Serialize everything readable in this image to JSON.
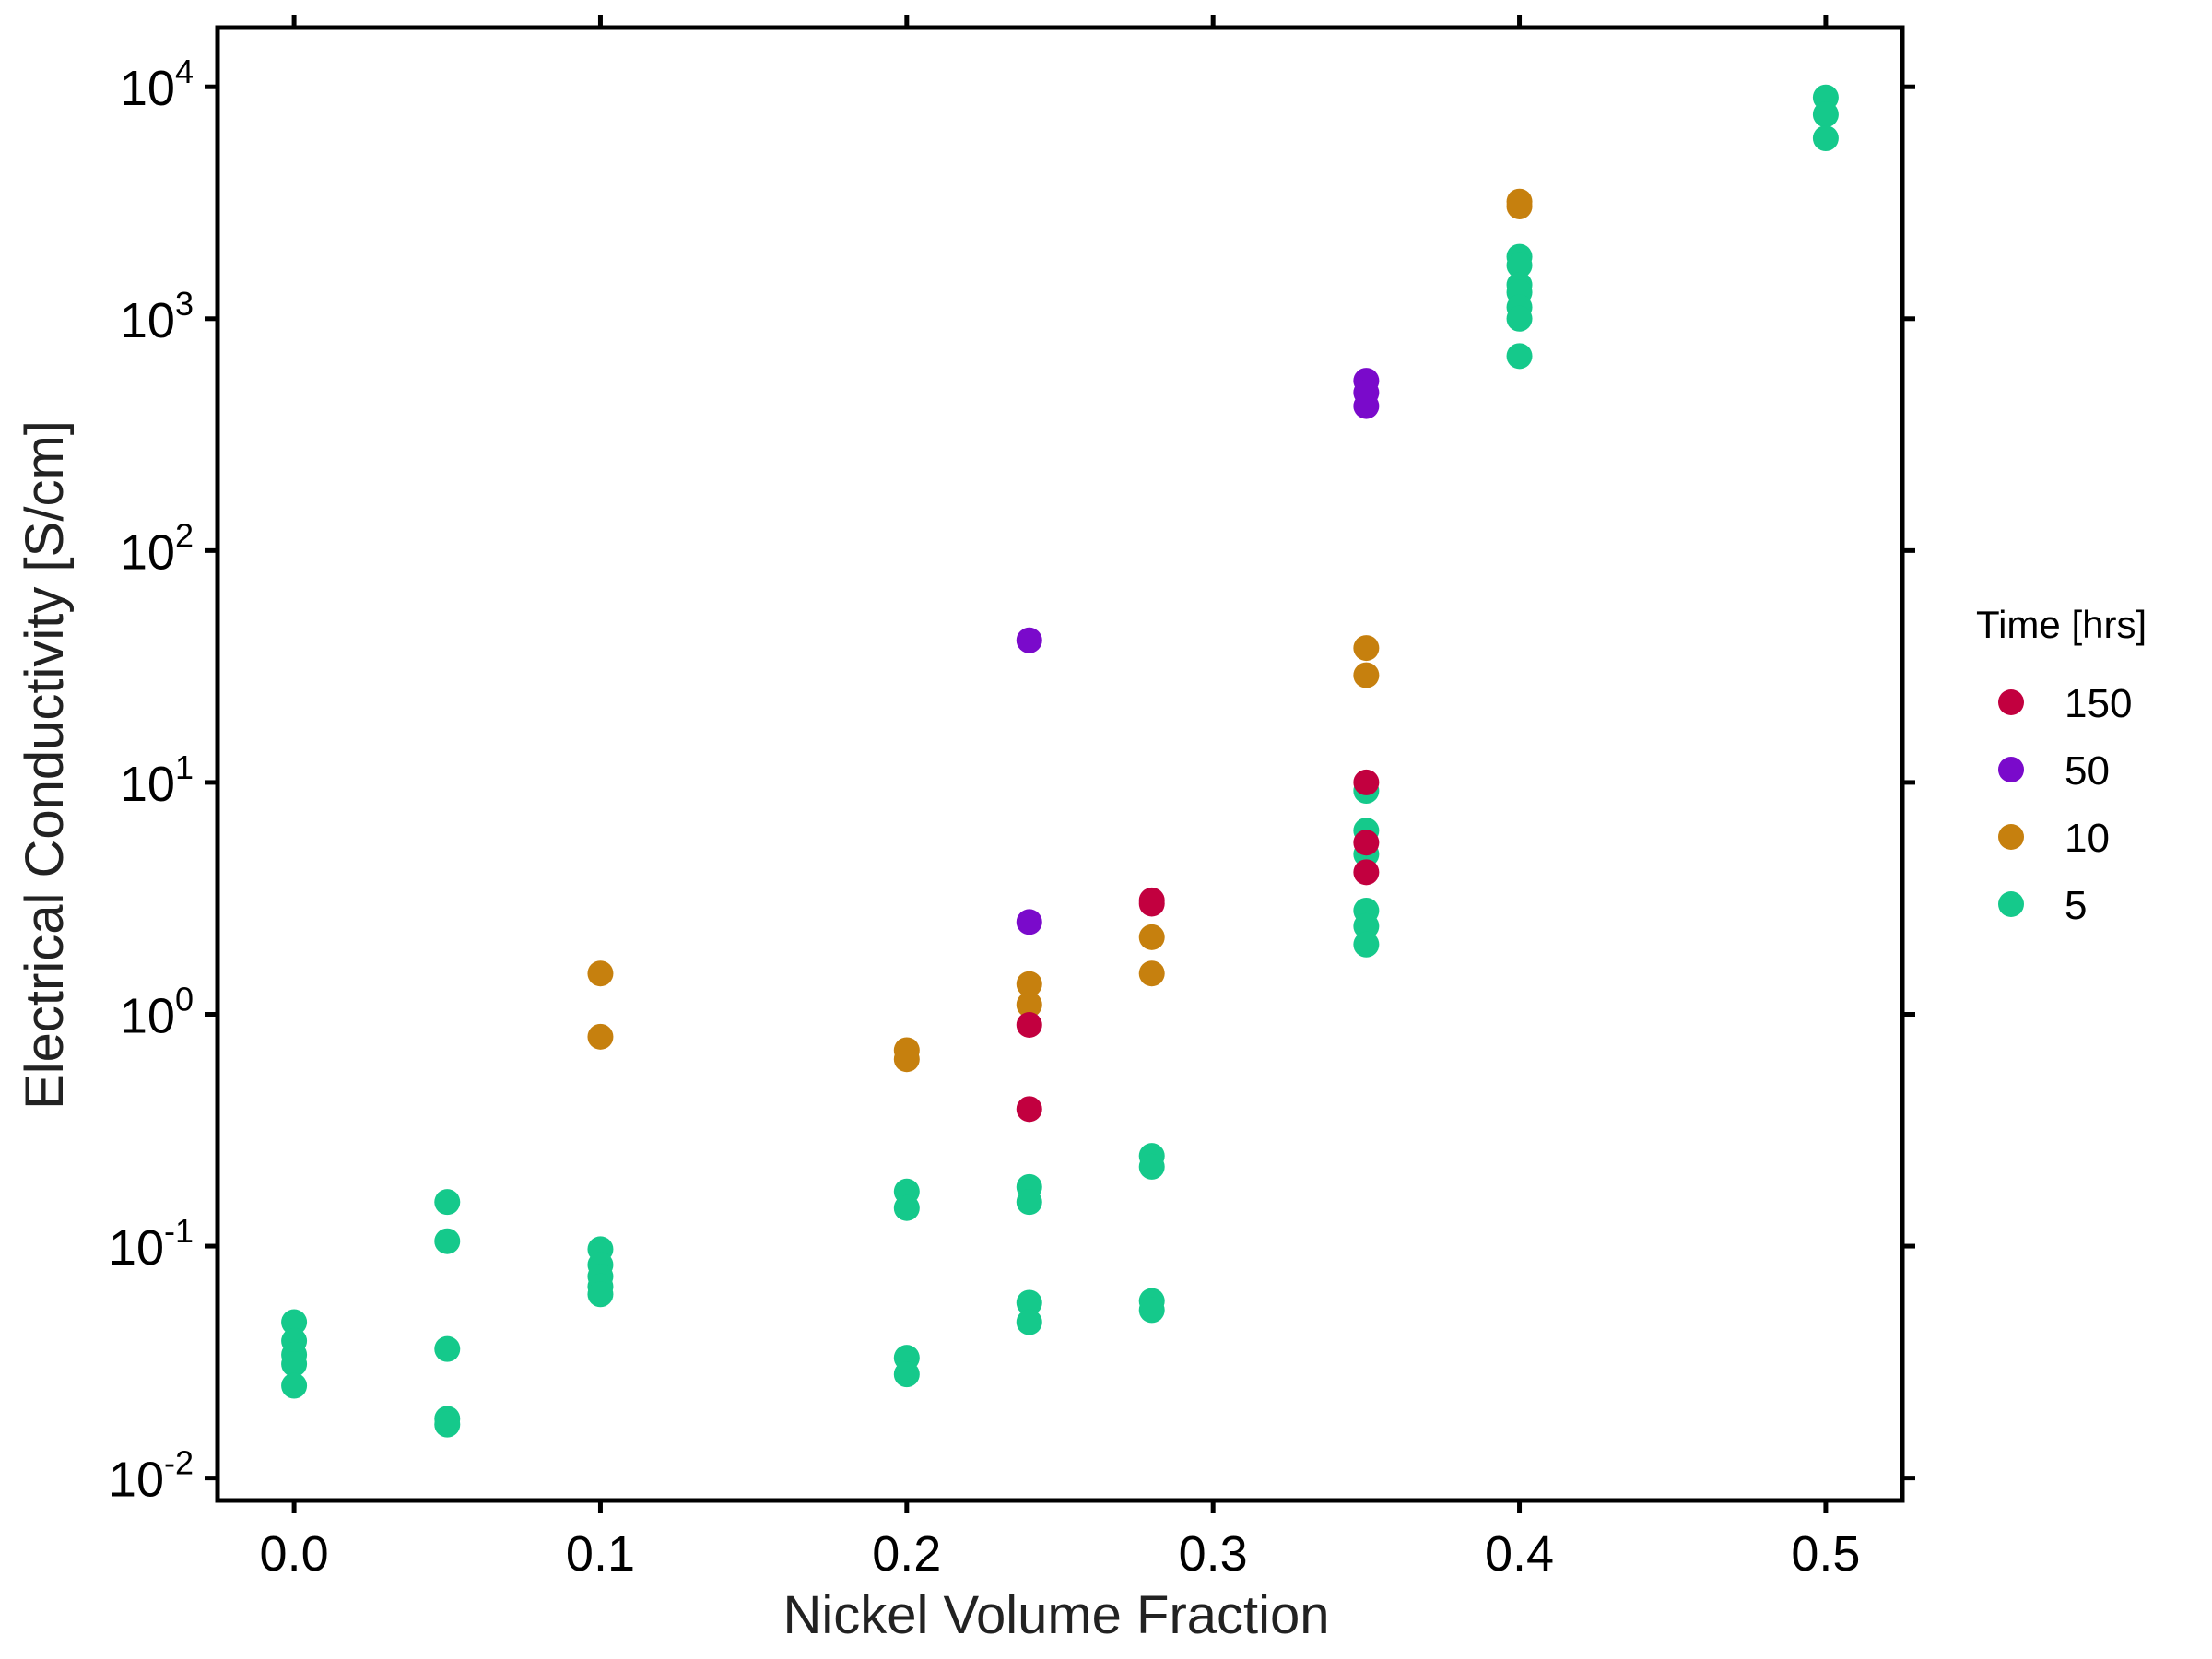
{
  "chart_data": {
    "type": "scatter",
    "title": "",
    "xlabel": "Nickel Volume Fraction",
    "ylabel": "Electrical Conductivity [S/cm]",
    "xlim": [
      -0.025,
      0.525
    ],
    "ylim": [
      0.008,
      18000
    ],
    "y_scale": "log",
    "x_ticks": [
      "0.0",
      "0.1",
      "0.2",
      "0.3",
      "0.4",
      "0.5"
    ],
    "x_tick_values": [
      0.0,
      0.1,
      0.2,
      0.3,
      0.4,
      0.5
    ],
    "y_tick_mantissa": "10",
    "y_tick_exponents": [
      "-2",
      "-1",
      "0",
      "1",
      "2",
      "3",
      "4"
    ],
    "y_tick_values": [
      0.01,
      0.1,
      1,
      10,
      100,
      1000,
      10000
    ],
    "grid": false,
    "legend": {
      "title": "Time [hrs]",
      "position": "right"
    },
    "series": [
      {
        "name": "150",
        "color": "#C2003F",
        "points": [
          [
            0.24,
            0.9
          ],
          [
            0.24,
            0.39
          ],
          [
            0.28,
            3.0
          ],
          [
            0.28,
            3.1
          ],
          [
            0.35,
            10.0
          ],
          [
            0.35,
            5.5
          ],
          [
            0.35,
            4.1
          ]
        ]
      },
      {
        "name": "50",
        "color": "#7A0ACB",
        "points": [
          [
            0.24,
            41
          ],
          [
            0.24,
            2.5
          ],
          [
            0.35,
            540
          ],
          [
            0.35,
            480
          ],
          [
            0.35,
            420
          ]
        ]
      },
      {
        "name": "10",
        "color": "#C6800E",
        "points": [
          [
            0.1,
            1.5
          ],
          [
            0.1,
            0.8
          ],
          [
            0.2,
            0.7
          ],
          [
            0.2,
            0.64
          ],
          [
            0.24,
            1.35
          ],
          [
            0.24,
            1.1
          ],
          [
            0.28,
            2.15
          ],
          [
            0.28,
            1.5
          ],
          [
            0.35,
            38
          ],
          [
            0.35,
            29
          ],
          [
            0.4,
            3200
          ],
          [
            0.4,
            3050
          ]
        ]
      },
      {
        "name": "5",
        "color": "#15C98B",
        "points": [
          [
            0.0,
            0.047
          ],
          [
            0.0,
            0.039
          ],
          [
            0.0,
            0.034
          ],
          [
            0.0,
            0.031
          ],
          [
            0.0,
            0.025
          ],
          [
            0.05,
            0.155
          ],
          [
            0.05,
            0.105
          ],
          [
            0.05,
            0.036
          ],
          [
            0.05,
            0.018
          ],
          [
            0.05,
            0.017
          ],
          [
            0.1,
            0.097
          ],
          [
            0.1,
            0.083
          ],
          [
            0.1,
            0.074
          ],
          [
            0.1,
            0.067
          ],
          [
            0.1,
            0.062
          ],
          [
            0.2,
            0.172
          ],
          [
            0.2,
            0.146
          ],
          [
            0.2,
            0.033
          ],
          [
            0.2,
            0.028
          ],
          [
            0.24,
            0.18
          ],
          [
            0.24,
            0.155
          ],
          [
            0.24,
            0.057
          ],
          [
            0.24,
            0.047
          ],
          [
            0.28,
            0.245
          ],
          [
            0.28,
            0.22
          ],
          [
            0.28,
            0.058
          ],
          [
            0.28,
            0.053
          ],
          [
            0.35,
            9.2
          ],
          [
            0.35,
            6.2
          ],
          [
            0.35,
            4.9
          ],
          [
            0.35,
            2.8
          ],
          [
            0.35,
            2.4
          ],
          [
            0.35,
            2.0
          ],
          [
            0.4,
            1850
          ],
          [
            0.4,
            1700
          ],
          [
            0.4,
            1400
          ],
          [
            0.4,
            1300
          ],
          [
            0.4,
            1120
          ],
          [
            0.4,
            1000
          ],
          [
            0.4,
            690
          ],
          [
            0.5,
            9000
          ],
          [
            0.5,
            7600
          ],
          [
            0.5,
            6000
          ]
        ]
      }
    ]
  }
}
